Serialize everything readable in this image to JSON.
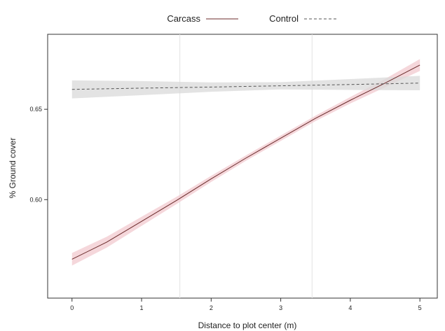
{
  "chart_data": {
    "type": "line",
    "xlabel": "Distance to plot center (m)",
    "ylabel": "% Ground cover",
    "xlim": [
      -0.35,
      5.25
    ],
    "ylim": [
      0.5455,
      0.6915
    ],
    "x_ticks": [
      0,
      1,
      2,
      3,
      4,
      5
    ],
    "x_tick_labels": [
      "0",
      "1",
      "2",
      "3",
      "4",
      "5"
    ],
    "y_ticks": [
      0.6,
      0.65
    ],
    "y_tick_labels": [
      "0.60",
      "0.65"
    ],
    "vertical_reference_lines": [
      1.55,
      3.45
    ],
    "legend_position": "top",
    "series": [
      {
        "name": "Carcass",
        "line_style": "solid",
        "color": "#6b2b2b",
        "band_color": "#f2c9cf",
        "x": [
          0,
          0.5,
          1,
          1.5,
          2,
          2.5,
          3,
          3.5,
          4,
          4.5,
          5
        ],
        "y": [
          0.567,
          0.5765,
          0.588,
          0.5995,
          0.6115,
          0.623,
          0.634,
          0.645,
          0.655,
          0.6645,
          0.6745
        ],
        "ci_lower": [
          0.5635,
          0.5735,
          0.5855,
          0.5975,
          0.6098,
          0.6215,
          0.6325,
          0.6435,
          0.6532,
          0.6622,
          0.6712
        ],
        "ci_upper": [
          0.5705,
          0.5795,
          0.5905,
          0.6015,
          0.6132,
          0.6245,
          0.6355,
          0.6465,
          0.6568,
          0.6668,
          0.6778
        ]
      },
      {
        "name": "Control",
        "line_style": "dashed",
        "color": "#555555",
        "band_color": "#d9d9d9",
        "x": [
          0,
          1,
          2,
          3,
          4,
          5
        ],
        "y": [
          0.661,
          0.6617,
          0.6623,
          0.663,
          0.6637,
          0.6645
        ],
        "ci_lower": [
          0.656,
          0.6578,
          0.6597,
          0.661,
          0.6607,
          0.6605
        ],
        "ci_upper": [
          0.666,
          0.6656,
          0.6649,
          0.665,
          0.6667,
          0.6685
        ]
      }
    ]
  }
}
